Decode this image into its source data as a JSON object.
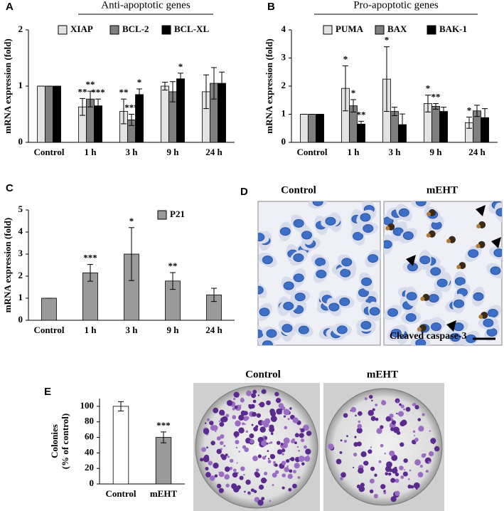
{
  "chart_data": [
    {
      "type": "bar",
      "panel": "A",
      "header": "Anti-apoptotic genes",
      "ylabel": "mRNA expression (fold)",
      "categories": [
        "Control",
        "1 h",
        "3 h",
        "9 h",
        "24 h"
      ],
      "ylim": [
        0,
        2
      ],
      "yticks": [
        0,
        1,
        2
      ],
      "series": [
        {
          "name": "XIAP",
          "color": "#e3e3e3",
          "values": [
            1,
            0.63,
            0.55,
            1.0,
            0.9
          ],
          "errors": [
            0,
            0.15,
            0.22,
            0.07,
            0.3
          ],
          "annotations": [
            null,
            "**",
            "**",
            null,
            null
          ]
        },
        {
          "name": "BCL-2",
          "color": "#7f7f7f",
          "values": [
            1,
            0.77,
            0.4,
            0.9,
            1.05
          ],
          "errors": [
            0,
            0.14,
            0.1,
            0.18,
            0.28
          ],
          "annotations": [
            null,
            "**",
            "***",
            null,
            null
          ]
        },
        {
          "name": "BCL-XL",
          "color": "#000000",
          "values": [
            1,
            0.65,
            0.85,
            1.13,
            1.05
          ],
          "errors": [
            0,
            0.12,
            0.1,
            0.1,
            0.2
          ],
          "annotations": [
            null,
            "***",
            "*",
            "*",
            null
          ]
        }
      ]
    },
    {
      "type": "bar",
      "panel": "B",
      "header": "Pro-apoptotic genes",
      "ylabel": "mRNA expression (fold)",
      "categories": [
        "Control",
        "1 h",
        "3 h",
        "9 h",
        "24 h"
      ],
      "ylim": [
        0,
        4
      ],
      "yticks": [
        0,
        1,
        2,
        3,
        4
      ],
      "series": [
        {
          "name": "PUMA",
          "color": "#e3e3e3",
          "values": [
            1,
            1.92,
            2.25,
            1.38,
            0.7
          ],
          "errors": [
            0,
            0.8,
            1.15,
            0.3,
            0.2
          ],
          "annotations": [
            null,
            "*",
            "*",
            "*",
            "*"
          ]
        },
        {
          "name": "BAX",
          "color": "#7f7f7f",
          "values": [
            1,
            1.3,
            1.1,
            1.28,
            1.12
          ],
          "errors": [
            0,
            0.22,
            0.15,
            0.1,
            0.2
          ],
          "annotations": [
            null,
            "*",
            null,
            "**",
            null
          ]
        },
        {
          "name": "BAK-1",
          "color": "#000000",
          "values": [
            1,
            0.65,
            0.63,
            1.1,
            0.88
          ],
          "errors": [
            0,
            0.1,
            0.38,
            0.15,
            0.32
          ],
          "annotations": [
            null,
            "**",
            null,
            null,
            null
          ]
        }
      ]
    },
    {
      "type": "bar",
      "panel": "C",
      "ylabel": "mRNA expression (fold)",
      "categories": [
        "Control",
        "1 h",
        "3 h",
        "9 h",
        "24 h"
      ],
      "ylim": [
        0,
        5
      ],
      "yticks": [
        0,
        1,
        2,
        3,
        4,
        5
      ],
      "series": [
        {
          "name": "P21",
          "color": "#9a9a9a",
          "values": [
            1,
            2.15,
            3.0,
            1.78,
            1.15
          ],
          "errors": [
            0,
            0.38,
            1.2,
            0.38,
            0.3
          ],
          "annotations": [
            null,
            "***",
            "*",
            "**",
            null
          ]
        }
      ]
    },
    {
      "type": "bar",
      "panel": "E",
      "ylabel": [
        "Colonies",
        "(% of control)"
      ],
      "categories": [
        "Control",
        "mEHT"
      ],
      "ylim": [
        0,
        110
      ],
      "yticks": [
        0,
        20,
        40,
        60,
        80,
        100
      ],
      "values": [
        100,
        60
      ],
      "errors": [
        6,
        7
      ],
      "colors": [
        "#ffffff",
        "#9a9a9a"
      ],
      "annotations": [
        null,
        "***"
      ]
    }
  ],
  "micrographs": {
    "panel": "D",
    "titles": [
      "Control",
      "mEHT"
    ],
    "caption": "Cleaved caspase-3"
  },
  "plates": {
    "titles": [
      "Control",
      "mEHT"
    ]
  }
}
